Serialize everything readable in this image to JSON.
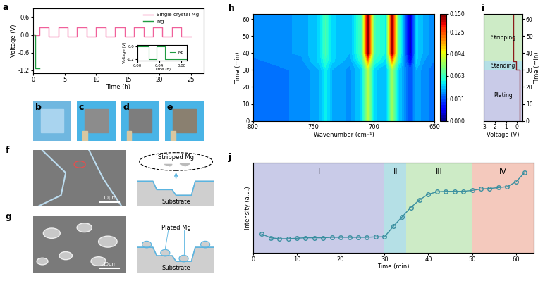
{
  "chart_data": [
    {
      "label": "a",
      "type": "line",
      "xlabel": "Time (h)",
      "ylabel": "Voltage (V)",
      "xlim": [
        0,
        27
      ],
      "ylim": [
        -1.3,
        0.9
      ],
      "xticks": [
        0,
        5,
        10,
        15,
        20,
        25
      ],
      "yticks": [
        -1.2,
        -0.6,
        {
          "value": 0,
          "label": "0.0"
        },
        0.6
      ],
      "legend": "upper right",
      "series": [
        {
          "name": "Single-crystal Mg",
          "color": "#f0609a",
          "x": [
            0,
            1,
            1,
            2.5,
            2.5,
            4,
            4,
            5.5,
            5.5,
            7,
            7,
            8.5,
            8.5,
            10,
            10,
            11.5,
            11.5,
            13,
            13,
            14.5,
            14.5,
            16,
            16,
            17.5,
            17.5,
            19,
            19,
            20.5,
            20.5,
            22,
            22,
            23.5,
            23.5,
            25
          ],
          "values": [
            0,
            0,
            0.25,
            0.25,
            -0.05,
            -0.05,
            0.25,
            0.25,
            -0.05,
            -0.05,
            0.25,
            0.25,
            -0.05,
            -0.05,
            0.25,
            0.25,
            -0.05,
            -0.05,
            0.25,
            0.25,
            -0.05,
            -0.05,
            0.25,
            0.25,
            -0.05,
            -0.05,
            0.25,
            0.25,
            -0.05,
            -0.05,
            0.25,
            0.25,
            -0.05,
            -0.05
          ]
        },
        {
          "name": "Mg",
          "color": "#1f9a40",
          "x": [
            0,
            0.4,
            0.4,
            1.0
          ],
          "values": [
            0.02,
            0.02,
            -1.15,
            -1.15
          ]
        }
      ],
      "inset": {
        "type": "line",
        "xlabel": "Time (h)",
        "ylabel": "Voltage (V)",
        "xlim": [
          0,
          0.09
        ],
        "ylim": [
          -1.3,
          0.15
        ],
        "xticks": [
          {
            "value": 0,
            "label": "0.00"
          },
          0.04,
          0.08
        ],
        "yticks": [
          -1.2,
          {
            "value": 0,
            "label": "0.0"
          }
        ],
        "legend": "center right",
        "series": [
          {
            "name": "Mg",
            "color": "#1f9a40",
            "x": [
              0,
              0.02,
              0.02,
              0.035,
              0.035,
              0.05,
              0.05,
              0.09
            ],
            "values": [
              0,
              0,
              -1.15,
              -1.15,
              0,
              0,
              -1.15,
              -1.15
            ]
          }
        ]
      }
    },
    {
      "label": "h",
      "type": "contour",
      "xlabel": "Wavenumber (cm⁻¹)",
      "ylabel": "Time (min)",
      "x": [
        800,
        780,
        760,
        745,
        740,
        735,
        720,
        710,
        705,
        700,
        690,
        685,
        680,
        675,
        670,
        665,
        660,
        650
      ],
      "y": [
        0,
        10,
        20,
        30,
        35,
        40,
        45,
        50,
        55,
        63
      ],
      "values": [
        [
          0.035,
          0.037,
          0.038,
          0.045,
          0.055,
          0.045,
          0.04,
          0.05,
          0.085,
          0.05,
          0.045,
          0.08,
          0.05,
          0.04,
          0.03,
          0.045,
          0.04,
          0.035
        ],
        [
          0.035,
          0.037,
          0.038,
          0.045,
          0.055,
          0.045,
          0.04,
          0.05,
          0.085,
          0.05,
          0.045,
          0.08,
          0.05,
          0.04,
          0.03,
          0.045,
          0.04,
          0.035
        ],
        [
          0.035,
          0.037,
          0.038,
          0.045,
          0.055,
          0.045,
          0.04,
          0.05,
          0.085,
          0.05,
          0.045,
          0.08,
          0.05,
          0.04,
          0.03,
          0.045,
          0.04,
          0.035
        ],
        [
          0.035,
          0.037,
          0.038,
          0.045,
          0.055,
          0.045,
          0.04,
          0.05,
          0.085,
          0.05,
          0.045,
          0.08,
          0.05,
          0.04,
          0.03,
          0.045,
          0.04,
          0.035
        ],
        [
          0.037,
          0.038,
          0.04,
          0.05,
          0.06,
          0.05,
          0.042,
          0.06,
          0.11,
          0.06,
          0.05,
          0.11,
          0.06,
          0.04,
          0.015,
          0.05,
          0.042,
          0.037
        ],
        [
          0.038,
          0.04,
          0.042,
          0.05,
          0.065,
          0.05,
          0.045,
          0.065,
          0.15,
          0.065,
          0.055,
          0.145,
          0.065,
          0.04,
          0.005,
          0.05,
          0.045,
          0.038
        ],
        [
          0.038,
          0.04,
          0.042,
          0.05,
          0.065,
          0.05,
          0.045,
          0.065,
          0.15,
          0.065,
          0.055,
          0.145,
          0.065,
          0.04,
          0.005,
          0.05,
          0.045,
          0.038
        ],
        [
          0.038,
          0.04,
          0.042,
          0.05,
          0.065,
          0.05,
          0.045,
          0.065,
          0.15,
          0.065,
          0.055,
          0.145,
          0.065,
          0.04,
          0.005,
          0.05,
          0.045,
          0.038
        ],
        [
          0.038,
          0.04,
          0.042,
          0.05,
          0.065,
          0.05,
          0.045,
          0.065,
          0.15,
          0.065,
          0.055,
          0.145,
          0.065,
          0.04,
          0.005,
          0.05,
          0.045,
          0.038
        ],
        [
          0.038,
          0.04,
          0.042,
          0.05,
          0.065,
          0.05,
          0.045,
          0.065,
          0.15,
          0.065,
          0.055,
          0.145,
          0.065,
          0.04,
          0.005,
          0.05,
          0.045,
          0.038
        ]
      ],
      "xlim": [
        800,
        650
      ],
      "ylim": [
        0,
        63
      ],
      "xticks": [
        800,
        750,
        700,
        650
      ],
      "yticks": [
        0,
        10,
        20,
        30,
        40,
        50,
        60
      ],
      "colorbar": {
        "range": [
          0,
          0.15
        ],
        "ticks": [
          {
            "value": 0,
            "label": "0.000"
          },
          0.031,
          0.063,
          0.094,
          0.125,
          {
            "value": 0.15,
            "label": "0.150"
          }
        ]
      }
    },
    {
      "label": "i",
      "type": "line",
      "xlabel": "Voltage (V)",
      "ylabel": "Time (min)",
      "x": [
        -0.25,
        -0.25,
        0.05,
        0.05,
        0.35,
        0.35
      ],
      "values": [
        0,
        30,
        30,
        35,
        35,
        62
      ],
      "color": "#8b1a1a",
      "xlim": [
        3,
        -0.5
      ],
      "ylim": [
        0,
        63
      ],
      "xticks": [
        3,
        2,
        1,
        0
      ],
      "yticks": [
        0,
        10,
        20,
        30,
        40,
        50,
        60
      ],
      "regions": [
        {
          "name": "Plating",
          "start": 0,
          "end": 30,
          "color": "#c9cbe8"
        },
        {
          "name": "Standing",
          "start": 30,
          "end": 35,
          "color": "#b5e0e6"
        },
        {
          "name": "Stripping",
          "start": 35,
          "end": 63,
          "color": "#cdebc6"
        }
      ]
    },
    {
      "label": "j",
      "type": "line",
      "xlabel": "Time (min)",
      "ylabel": "Intensity (a.u.)",
      "x": [
        2,
        4,
        6,
        8,
        10,
        12,
        14,
        16,
        18,
        20,
        22,
        24,
        26,
        28,
        30,
        32,
        34,
        36,
        38,
        40,
        42,
        44,
        46,
        48,
        50,
        52,
        54,
        56,
        58,
        60,
        62
      ],
      "values": [
        0.3,
        0.26,
        0.25,
        0.25,
        0.255,
        0.26,
        0.26,
        0.26,
        0.265,
        0.265,
        0.265,
        0.265,
        0.265,
        0.27,
        0.27,
        0.38,
        0.48,
        0.58,
        0.66,
        0.72,
        0.745,
        0.75,
        0.75,
        0.75,
        0.76,
        0.775,
        0.78,
        0.79,
        0.8,
        0.85,
        0.95
      ],
      "color": "#3a8fa0",
      "marker": "o",
      "xlim": [
        0,
        64
      ],
      "ylim": [
        0.1,
        1.05
      ],
      "xticks": [
        0,
        10,
        20,
        30,
        40,
        50,
        60
      ],
      "tick_labels": "x",
      "regions": [
        {
          "name": "I",
          "start": 0,
          "end": 30,
          "color": "#c9cbe8"
        },
        {
          "name": "II",
          "start": 30,
          "end": 35,
          "color": "#b5e0e6"
        },
        {
          "name": "III",
          "start": 35,
          "end": 50,
          "color": "#cdebc6"
        },
        {
          "name": "IV",
          "start": 50,
          "end": 64,
          "color": "#f4c9bd"
        }
      ]
    }
  ],
  "images": [
    {
      "label": "b"
    },
    {
      "label": "c"
    },
    {
      "label": "d"
    },
    {
      "label": "e"
    }
  ],
  "micrographs": [
    {
      "label": "f",
      "scale_bar": "10μm"
    },
    {
      "label": "g",
      "scale_bar": "10μm"
    }
  ],
  "schematics": [
    {
      "title": "Stripped Mg",
      "substrate": "Substrate"
    },
    {
      "title": "Plated Mg",
      "substrate": "Substrate"
    }
  ]
}
